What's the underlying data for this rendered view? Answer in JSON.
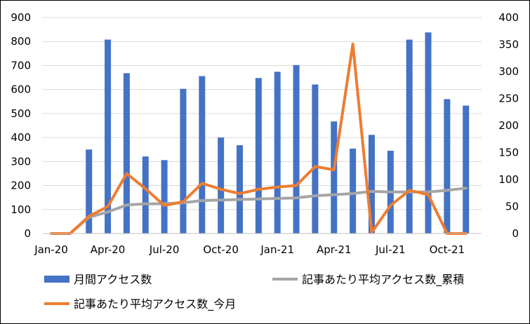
{
  "chart_data": {
    "type": "bar",
    "x_tick_labels": [
      "Jan-20",
      "Apr-20",
      "Jul-20",
      "Oct-20",
      "Jan-21",
      "Apr-21",
      "Jul-21",
      "Oct-21"
    ],
    "categories": [
      "2020-01",
      "2020-02",
      "2020-03",
      "2020-04",
      "2020-05",
      "2020-06",
      "2020-07",
      "2020-08",
      "2020-09",
      "2020-10",
      "2020-11",
      "2020-12",
      "2021-01",
      "2021-02",
      "2021-03",
      "2021-04",
      "2021-05",
      "2021-06",
      "2021-07",
      "2021-08",
      "2021-09",
      "2021-10",
      "2021-11"
    ],
    "y_left": {
      "ylim": [
        0,
        900
      ],
      "ticks": [
        0,
        100,
        200,
        300,
        400,
        500,
        600,
        700,
        800,
        900
      ]
    },
    "y_right": {
      "ylim": [
        0,
        400
      ],
      "ticks": [
        0,
        50,
        100,
        150,
        200,
        250,
        300,
        350,
        400
      ]
    },
    "grid": "horizontal",
    "legend_position": "bottom",
    "series": [
      {
        "name": "月間アクセス数",
        "type": "bar",
        "axis": "left",
        "color": "#4472C4",
        "values": [
          null,
          null,
          350,
          808,
          668,
          321,
          306,
          603,
          656,
          400,
          368,
          648,
          674,
          702,
          621,
          467,
          354,
          411,
          345,
          808,
          838,
          560,
          533
        ]
      },
      {
        "name": "記事あたり平均アクセス数_累積",
        "type": "line",
        "axis": "right",
        "color": "#A5A5A5",
        "values": [
          0,
          0,
          30,
          40,
          53,
          55,
          55,
          57,
          61,
          62,
          63,
          64,
          65,
          66,
          70,
          72,
          74,
          78,
          77,
          77,
          77,
          80,
          84
        ]
      },
      {
        "name": "記事あたり平均アクセス数_今月",
        "type": "line",
        "axis": "right",
        "color": "#ED7D31",
        "values": [
          0,
          0,
          32,
          50,
          111,
          83,
          52,
          59,
          93,
          82,
          74,
          82,
          86,
          89,
          124,
          118,
          351,
          2,
          52,
          80,
          72,
          0,
          0
        ]
      }
    ]
  }
}
